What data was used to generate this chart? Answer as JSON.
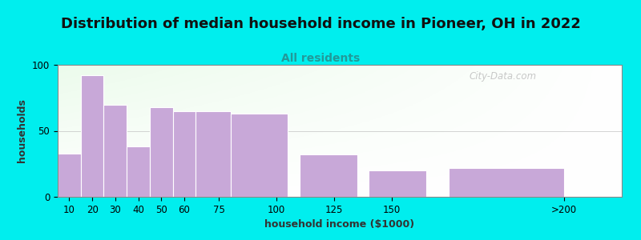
{
  "title": "Distribution of median household income in Pioneer, OH in 2022",
  "subtitle": "All residents",
  "xlabel": "household income ($1000)",
  "ylabel": "households",
  "background_outer": "#00EEEE",
  "bar_color": "#C8A8D8",
  "bar_edge_color": "#FFFFFF",
  "categories": [
    "10",
    "20",
    "30",
    "40",
    "50",
    "60",
    "75",
    "100",
    "125",
    "150",
    ">200"
  ],
  "values": [
    33,
    92,
    70,
    38,
    68,
    65,
    65,
    63,
    32,
    20,
    22
  ],
  "bar_lefts": [
    5,
    15,
    25,
    35,
    45,
    55,
    65,
    80,
    110,
    140,
    175
  ],
  "bar_widths": [
    10,
    10,
    10,
    10,
    10,
    10,
    15,
    25,
    25,
    25,
    50
  ],
  "xtick_positions": [
    10,
    20,
    30,
    40,
    50,
    60,
    75,
    100,
    125,
    150,
    225
  ],
  "xtick_labels": [
    "10",
    "20",
    "30",
    "40",
    "50",
    "60",
    "75",
    "100",
    "125",
    "150",
    ">200"
  ],
  "xlim": [
    5,
    250
  ],
  "ylim": [
    0,
    100
  ],
  "yticks": [
    0,
    50,
    100
  ],
  "title_fontsize": 13,
  "subtitle_fontsize": 10,
  "label_fontsize": 9,
  "tick_fontsize": 8.5,
  "watermark_text": "City-Data.com"
}
